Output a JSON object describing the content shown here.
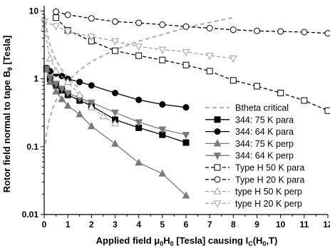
{
  "chart_data": {
    "type": "line",
    "xlabel": {
      "pre": "Applied field ",
      "mu": "μ",
      "sub0": "0",
      "H": "H",
      "sub0b": "0",
      "mid": " [Tesla] causing I",
      "subC": "C",
      "post": "(H",
      "sub0c": "0",
      "end": ",T)"
    },
    "ylabel": {
      "pre": "Rotor field normal to tape B",
      "sub": "θ",
      "post": " [Tesla]"
    },
    "xlim": [
      0,
      12
    ],
    "ylim": [
      0.01,
      12
    ],
    "yscale": "log",
    "x_ticks": [
      0,
      1,
      2,
      3,
      4,
      5,
      6,
      7,
      8,
      9,
      10,
      11,
      12
    ],
    "y_ticks": [
      {
        "value": 10,
        "label": "10"
      },
      {
        "value": 1,
        "label": "1"
      },
      {
        "value": 0.1,
        "label": "0.1"
      },
      {
        "value": 0.01,
        "label": "0.01"
      }
    ],
    "grid": false,
    "legend_position": "bottom-right",
    "series": [
      {
        "name": "Btheta critical",
        "line": "dash",
        "color": "#b4b4b4",
        "marker": "none",
        "x": [
          0.05,
          0.1,
          0.2,
          0.35,
          0.5,
          0.75,
          1.0,
          1.5,
          2.0,
          3.0,
          4.0,
          5.0,
          6.0,
          7.0,
          8.0
        ],
        "y": [
          0.11,
          0.16,
          0.24,
          0.36,
          0.48,
          0.68,
          0.92,
          1.35,
          1.8,
          2.7,
          3.6,
          4.5,
          5.7,
          6.8,
          8.0
        ]
      },
      {
        "name": "Btheta critical",
        "line": "dash",
        "color": "#b4b4b4",
        "marker": "none",
        "x": [
          0.0,
          0.1,
          0.2,
          0.35,
          0.5,
          0.75,
          1.0,
          1.25,
          1.5
        ],
        "y": [
          9.0,
          5.5,
          3.6,
          2.5,
          1.9,
          1.35,
          1.05,
          0.85,
          0.72
        ]
      },
      {
        "name": "344: 75 K para",
        "line": "solid",
        "color": "#000000",
        "marker": "square-filled",
        "x": [
          0.1,
          0.25,
          0.5,
          0.75,
          1.0,
          1.5,
          2.0,
          3.0,
          4.0,
          5.0,
          6.0
        ],
        "y": [
          1.4,
          1.0,
          0.8,
          0.68,
          0.58,
          0.48,
          0.4,
          0.25,
          0.19,
          0.15,
          0.115
        ]
      },
      {
        "name": "344: 64 K para",
        "line": "solid",
        "color": "#000000",
        "marker": "circle-filled",
        "x": [
          0.1,
          0.25,
          0.5,
          0.75,
          1.0,
          1.5,
          2.0,
          3.0,
          4.0,
          5.0,
          6.0
        ],
        "y": [
          1.45,
          1.3,
          1.2,
          1.1,
          1.0,
          0.9,
          0.8,
          0.62,
          0.49,
          0.42,
          0.38
        ]
      },
      {
        "name": "344: 75 K perp",
        "line": "solid",
        "color": "#7a7a7a",
        "marker": "triangle-up-filled",
        "x": [
          0.1,
          0.25,
          0.5,
          0.75,
          1.0,
          1.5,
          2.0,
          3.0,
          4.0,
          5.0,
          6.0
        ],
        "y": [
          1.4,
          0.9,
          0.65,
          0.5,
          0.4,
          0.3,
          0.2,
          0.11,
          0.058,
          0.04,
          0.019
        ]
      },
      {
        "name": "344: 64 K perp",
        "line": "solid",
        "color": "#7a7a7a",
        "marker": "triangle-down-filled",
        "x": [
          0.1,
          0.25,
          0.5,
          0.75,
          1.0,
          1.5,
          2.0,
          3.0,
          4.0,
          5.0,
          6.0
        ],
        "y": [
          1.4,
          1.05,
          0.85,
          0.72,
          0.62,
          0.52,
          0.45,
          0.32,
          0.23,
          0.18,
          0.15
        ]
      },
      {
        "name": "Type H 50 K para",
        "line": "dash",
        "color": "#000000",
        "marker": "square-open",
        "x": [
          0.5,
          1.0,
          2.0,
          3.0,
          4.0,
          5.0,
          6.0,
          7.0,
          8.0,
          9.0,
          10.0,
          11.0,
          12.0
        ],
        "y": [
          8.0,
          5.2,
          3.6,
          2.6,
          2.2,
          1.9,
          1.6,
          1.3,
          0.95,
          0.78,
          0.62,
          0.48,
          0.34
        ]
      },
      {
        "name": "Type H 20 K para",
        "line": "dash",
        "color": "#000000",
        "marker": "circle-open",
        "x": [
          0.5,
          1.0,
          2.0,
          3.0,
          4.0,
          5.0,
          6.0,
          7.0,
          8.0,
          9.0,
          10.0,
          11.0,
          12.0
        ],
        "y": [
          9.8,
          8.8,
          7.8,
          7.0,
          6.7,
          6.3,
          5.9,
          5.6,
          5.3,
          5.1,
          5.0,
          4.9,
          4.7
        ]
      },
      {
        "name": "type H 50 K perp",
        "line": "dash",
        "color": "#a0a0a0",
        "marker": "triangle-up-open",
        "x": [
          0.0,
          0.25,
          0.5,
          1.0,
          1.5,
          2.0,
          2.5,
          3.0
        ],
        "y": [
          5.5,
          2.0,
          1.3,
          0.9,
          0.58,
          0.38,
          0.28,
          0.22
        ]
      },
      {
        "name": "type H 20 K perp",
        "line": "dash",
        "color": "#a0a0a0",
        "marker": "triangle-down-open",
        "x": [
          0.0,
          0.5,
          1.0,
          2.0,
          3.0,
          4.0,
          5.0,
          6.0,
          7.0,
          8.0
        ],
        "y": [
          7.0,
          6.0,
          5.0,
          4.2,
          3.6,
          3.0,
          2.7,
          2.5,
          2.2,
          2.0
        ]
      }
    ]
  }
}
